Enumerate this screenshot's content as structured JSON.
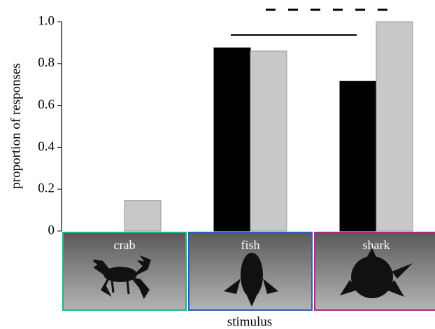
{
  "chart_data": {
    "type": "bar",
    "x_label": "stimulus",
    "y_label": "proportion of responses",
    "categories": [
      "crab",
      "fish",
      "shark"
    ],
    "series": [
      {
        "color": "#000000",
        "values": [
          0,
          0.875,
          0.715
        ]
      },
      {
        "color": "#c8c8c8",
        "values": [
          0.145,
          0.86,
          1.0
        ]
      }
    ],
    "ylim": [
      0,
      1.0
    ],
    "yticks": [
      0,
      0.2,
      0.4,
      0.6,
      0.8,
      {
        "value": 1.0,
        "label": "1.0"
      }
    ],
    "box_colors": [
      "#22b38a",
      "#2f5fb3",
      "#a8307f"
    ]
  }
}
